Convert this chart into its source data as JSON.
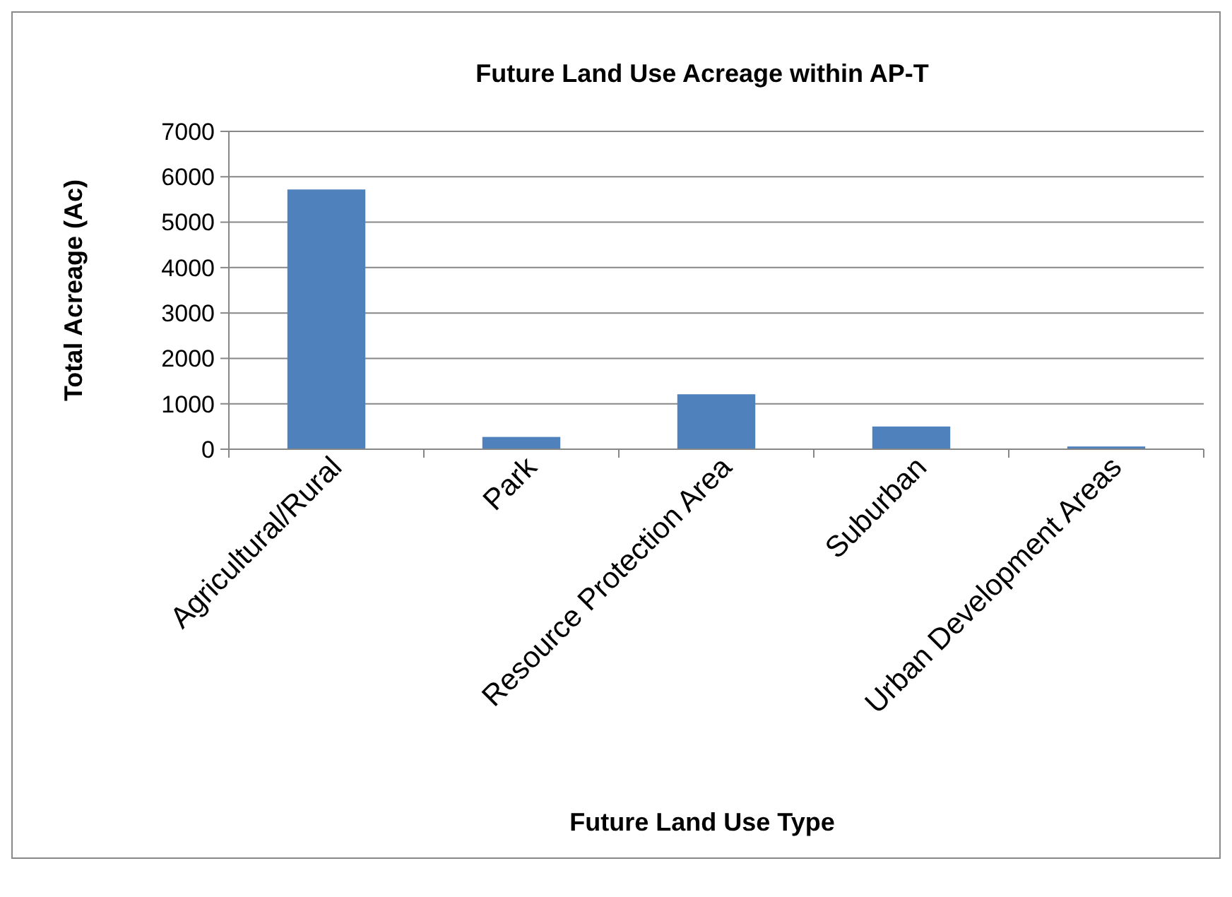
{
  "chart_data": {
    "type": "bar",
    "title": "Future Land Use Acreage within AP-T",
    "xlabel": "Future Land Use Type",
    "ylabel": "Total Acreage (Ac)",
    "categories": [
      "Agricultural/Rural",
      "Park",
      "Resource Protection Area",
      "Suburban",
      "Urban Development Areas"
    ],
    "values": [
      5720,
      270,
      1210,
      500,
      60
    ],
    "color": "#4f81bd",
    "ylim": [
      0,
      7000
    ],
    "yticks": [
      0,
      1000,
      2000,
      3000,
      4000,
      5000,
      6000,
      7000
    ],
    "grid": "y"
  }
}
